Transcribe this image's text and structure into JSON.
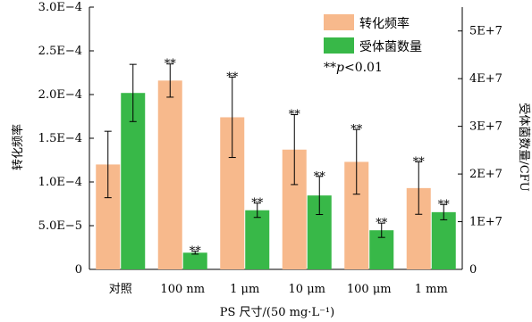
{
  "chart_data": {
    "type": "bar",
    "categories": [
      "对照",
      "100 nm",
      "1 μm",
      "10 μm",
      "100 μm",
      "1 mm"
    ],
    "xlabel": "PS 尺寸/(50 mg·L⁻¹)",
    "ylabel_left": "转化频率",
    "ylabel_right": "受体菌数量/CFU",
    "y_left": {
      "ylim": [
        0,
        0.0003
      ],
      "ticks": [
        0,
        5e-05,
        0.0001,
        0.00015,
        0.0002,
        0.00025,
        0.0003
      ],
      "tick_labels": [
        "0",
        "5.0E−5",
        "1.0E−4",
        "1.5E−4",
        "2.0E−4",
        "2.5E−4",
        "3.0E−4"
      ]
    },
    "y_right": {
      "ylim": [
        0,
        55000000
      ],
      "ticks": [
        0,
        10000000,
        20000000,
        30000000,
        40000000,
        50000000
      ],
      "tick_labels": [
        "0",
        "1E+7",
        "2E+7",
        "3E+7",
        "4E+7",
        "5E+7"
      ]
    },
    "series": [
      {
        "name": "转化频率",
        "axis": "left",
        "color": "#f7b98c",
        "values": [
          0.00012,
          0.000216,
          0.000174,
          0.000137,
          0.000123,
          9.3e-05
        ],
        "errors": [
          3.8e-05,
          1.9e-05,
          4.6e-05,
          4e-05,
          3.7e-05,
          3e-05
        ],
        "significance": [
          "",
          "**",
          "**",
          "**",
          "**",
          "**"
        ]
      },
      {
        "name": "受体菌数量",
        "axis": "right",
        "color": "#38b848",
        "values": [
          37000000,
          3500000,
          12400000,
          15500000,
          8200000,
          12000000
        ],
        "errors": [
          6000000,
          300000,
          1500000,
          4000000,
          1500000,
          1600000
        ],
        "significance": [
          "",
          "**",
          "**",
          "**",
          "**",
          "**"
        ]
      }
    ],
    "annotation": "**p<0.01",
    "legend_position": "top-right"
  }
}
